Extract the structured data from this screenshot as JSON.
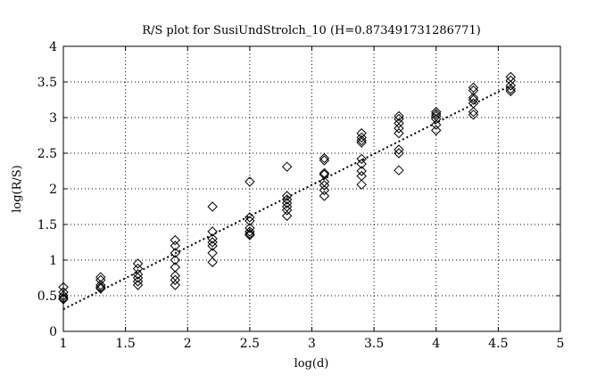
{
  "chart_data": {
    "type": "scatter",
    "title": "R/S plot for SusiUndStrolch_10 (H=0.873491731286771)",
    "xlabel": "log(d)",
    "ylabel": "log(R/S)",
    "xlim": [
      1,
      5
    ],
    "ylim": [
      0,
      4
    ],
    "xticks": [
      1,
      1.5,
      2,
      2.5,
      3,
      3.5,
      4,
      4.5,
      5
    ],
    "yticks": [
      0,
      0.5,
      1,
      1.5,
      2,
      2.5,
      3,
      3.5,
      4
    ],
    "xtick_labels": [
      "1",
      "1.5",
      "2",
      "2.5",
      "3",
      "3.5",
      "4",
      "4.5",
      "5"
    ],
    "ytick_labels": [
      "0",
      "0.5",
      "1",
      "1.5",
      "2",
      "2.5",
      "3",
      "3.5",
      "4"
    ],
    "grid": true,
    "marker": "diamond",
    "series": [
      {
        "points": [
          [
            1.0,
            0.62
          ],
          [
            1.0,
            0.55
          ],
          [
            1.0,
            0.5
          ],
          [
            1.0,
            0.47
          ],
          [
            1.0,
            0.45
          ],
          [
            1.3,
            0.76
          ],
          [
            1.3,
            0.72
          ],
          [
            1.3,
            0.65
          ],
          [
            1.3,
            0.62
          ],
          [
            1.3,
            0.6
          ],
          [
            1.6,
            0.95
          ],
          [
            1.6,
            0.88
          ],
          [
            1.6,
            0.8
          ],
          [
            1.6,
            0.75
          ],
          [
            1.6,
            0.7
          ],
          [
            1.6,
            0.65
          ],
          [
            1.9,
            1.28
          ],
          [
            1.9,
            1.2
          ],
          [
            1.9,
            1.1
          ],
          [
            1.9,
            1.0
          ],
          [
            1.9,
            0.9
          ],
          [
            1.9,
            0.78
          ],
          [
            1.9,
            0.72
          ],
          [
            1.9,
            0.65
          ],
          [
            2.2,
            1.75
          ],
          [
            2.2,
            1.4
          ],
          [
            2.2,
            1.3
          ],
          [
            2.2,
            1.25
          ],
          [
            2.2,
            1.2
          ],
          [
            2.2,
            1.1
          ],
          [
            2.2,
            0.97
          ],
          [
            2.5,
            2.1
          ],
          [
            2.5,
            1.6
          ],
          [
            2.5,
            1.55
          ],
          [
            2.5,
            1.45
          ],
          [
            2.5,
            1.4
          ],
          [
            2.5,
            1.37
          ],
          [
            2.5,
            1.35
          ],
          [
            2.8,
            2.31
          ],
          [
            2.8,
            1.9
          ],
          [
            2.8,
            1.85
          ],
          [
            2.8,
            1.8
          ],
          [
            2.8,
            1.75
          ],
          [
            2.8,
            1.7
          ],
          [
            2.8,
            1.62
          ],
          [
            3.1,
            2.43
          ],
          [
            3.1,
            2.4
          ],
          [
            3.1,
            2.22
          ],
          [
            3.1,
            2.2
          ],
          [
            3.1,
            2.1
          ],
          [
            3.1,
            2.05
          ],
          [
            3.1,
            1.98
          ],
          [
            3.1,
            1.9
          ],
          [
            3.4,
            2.78
          ],
          [
            3.4,
            2.72
          ],
          [
            3.4,
            2.68
          ],
          [
            3.4,
            2.65
          ],
          [
            3.4,
            2.42
          ],
          [
            3.4,
            2.35
          ],
          [
            3.4,
            2.25
          ],
          [
            3.4,
            2.18
          ],
          [
            3.4,
            2.06
          ],
          [
            3.7,
            3.02
          ],
          [
            3.7,
            2.98
          ],
          [
            3.7,
            2.92
          ],
          [
            3.7,
            2.85
          ],
          [
            3.7,
            2.78
          ],
          [
            3.7,
            2.55
          ],
          [
            3.7,
            2.5
          ],
          [
            3.7,
            2.26
          ],
          [
            4.0,
            3.08
          ],
          [
            4.0,
            3.05
          ],
          [
            4.0,
            3.02
          ],
          [
            4.0,
            2.98
          ],
          [
            4.0,
            2.9
          ],
          [
            4.0,
            2.82
          ],
          [
            4.3,
            3.42
          ],
          [
            4.3,
            3.38
          ],
          [
            4.3,
            3.28
          ],
          [
            4.3,
            3.25
          ],
          [
            4.3,
            3.2
          ],
          [
            4.3,
            3.08
          ],
          [
            4.3,
            3.04
          ],
          [
            4.6,
            3.57
          ],
          [
            4.6,
            3.52
          ],
          [
            4.6,
            3.45
          ],
          [
            4.6,
            3.4
          ],
          [
            4.6,
            3.37
          ]
        ]
      }
    ],
    "fit_line": {
      "x": [
        1.0,
        4.6
      ],
      "y": [
        0.31,
        3.45
      ],
      "style": "dotted"
    }
  }
}
